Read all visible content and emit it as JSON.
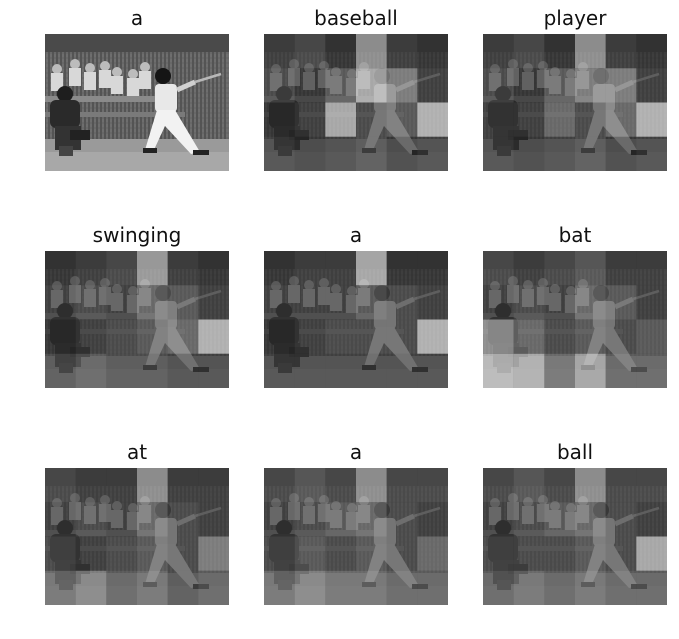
{
  "figure": {
    "panels": [
      {
        "word": "a",
        "brightness": "full"
      },
      {
        "word": "baseball",
        "brightness": "dim"
      },
      {
        "word": "player",
        "brightness": "dim"
      },
      {
        "word": "swinging",
        "brightness": "dim"
      },
      {
        "word": "a",
        "brightness": "dim"
      },
      {
        "word": "bat",
        "brightness": "dim"
      },
      {
        "word": "at",
        "brightness": "dim"
      },
      {
        "word": "a",
        "brightness": "dim"
      },
      {
        "word": "ball",
        "brightness": "dim"
      }
    ]
  }
}
